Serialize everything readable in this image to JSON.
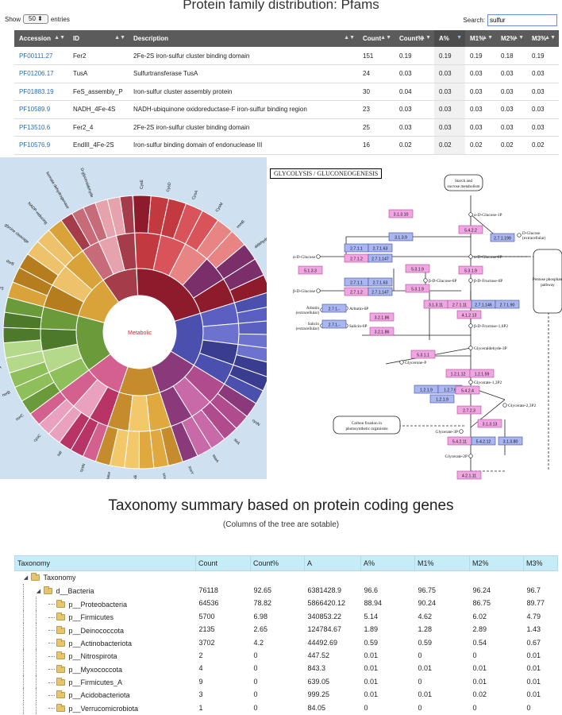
{
  "pfam": {
    "title": "Protein family distribution: Pfams",
    "show_label": "Show",
    "show_value": "50",
    "entries_label": "entries",
    "search_label": "Search:",
    "search_value": "sulfur",
    "headers": [
      "Accession",
      "ID",
      "Description",
      "Count",
      "Count%",
      "A%",
      "M1%",
      "M2%",
      "M3%"
    ],
    "rows": [
      [
        "PF00111.27",
        "Fer2",
        "2Fe-2S iron-sulfur cluster binding domain",
        "151",
        "0.19",
        "0.19",
        "0.19",
        "0.18",
        "0.19"
      ],
      [
        "PF01206.17",
        "TusA",
        "Sulfurtransferase TusA",
        "24",
        "0.03",
        "0.03",
        "0.03",
        "0.03",
        "0.03"
      ],
      [
        "PF01883.19",
        "FeS_assembly_P",
        "Iron-sulfur cluster assembly protein",
        "30",
        "0.04",
        "0.03",
        "0.03",
        "0.03",
        "0.03"
      ],
      [
        "PF10589.9",
        "NADH_4Fe-4S",
        "NADH-ubiquinone oxidoreductase-F iron-sulfur binding region",
        "23",
        "0.03",
        "0.03",
        "0.03",
        "0.03",
        "0.03"
      ],
      [
        "PF13510.6",
        "Fer2_4",
        "2Fe-2S iron-sulfur cluster binding domain",
        "25",
        "0.03",
        "0.03",
        "0.03",
        "0.03",
        "0.03"
      ],
      [
        "PF10576.9",
        "EndIII_4Fe-2S",
        "Iron-sulfur binding domain of endonuclease III",
        "16",
        "0.02",
        "0.02",
        "0.02",
        "0.02",
        "0.02"
      ]
    ]
  },
  "sunburst": {
    "center_label": "Metabolic",
    "labels": [
      "CysE",
      "CysD",
      "CysA",
      "CysM",
      "rnmB",
      "aldehyde dehydrogenase",
      "cysT",
      "Group II",
      "cysS",
      "cysB",
      "cysJ",
      "cysP",
      "cysN",
      "sirA",
      "sseA",
      "soxY",
      "soxC",
      "soxB",
      "dioxygenase",
      "cysN",
      "sat",
      "cysC",
      "norC",
      "norB",
      "napA",
      "nirD",
      "NiFe hydrogenase",
      "nirS",
      "dsrB",
      "glycine cleavage",
      "NADP-reducing",
      "formate dehydrogenase",
      "D-glyceraldehyde"
    ],
    "colors": [
      "#b2182b",
      "#d6604d",
      "#f4a582",
      "#4393c3",
      "#2166ac",
      "#5e3c99",
      "#7fbc41",
      "#e08214",
      "#fdb863",
      "#b35806",
      "#8c510a",
      "#b8e186",
      "#4d9221",
      "#e0f3f8"
    ]
  },
  "kegg": {
    "title": "GLYCOLYSIS / GLUCONEOGENESIS",
    "compounds": [
      "Starch and sucrose metabolism",
      "α-D-Glucose-1P",
      "D-Glucose (extracellular)",
      "α-D-Glucose",
      "α-D-Glucose-6P",
      "β-D-Glucose",
      "β-D-Glucose-6P",
      "β-D-Fructose-6P",
      "Pentose phosphate pathway",
      "Arbutin (extracellular)",
      "Arbutin-6P",
      "Salicin (extracellular)",
      "Salicin-6P",
      "β-D-Fructose-1,6P2",
      "Glyceraldehyde-3P",
      "Glycerone-P",
      "Glycerate-1,3P2",
      "Glycerate-2,3P2",
      "Carbon fixation in photosynthetic organisms",
      "Glycerate-3P",
      "Glycerate-2P"
    ],
    "enzymes": [
      "3.1.3.10",
      "5.4.2.2",
      "2.7.1.199",
      "3.1.3.9",
      "2.7.1.1",
      "2.7.1.63",
      "2.7.1.2",
      "2.7.1.147",
      "5.1.3.3",
      "5.3.1.9",
      "2.7.1.-",
      "3.2.1.86",
      "3.1.3.11",
      "2.7.1.11",
      "2.7.1.146",
      "2.7.1.90",
      "4.1.2.13",
      "5.3.1.1",
      "1.2.1.12",
      "1.2.1.59",
      "1.2.1.9",
      "1.2.7.6",
      "2.7.2.3",
      "5.4.2.4",
      "3.1.3.13",
      "5.4.2.11",
      "5.4.2.12",
      "3.1.3.80",
      "4.2.1.11"
    ]
  },
  "taxonomy": {
    "title": "Taxonomy summary based on protein coding genes",
    "subtitle": "(Columns of the tree are sotable)",
    "headers": [
      "Taxonomy",
      "Count",
      "Count%",
      "A",
      "A%",
      "M1%",
      "M2%",
      "M3%"
    ],
    "rows": [
      {
        "name": "Taxonomy",
        "level": 0,
        "values": [
          "",
          "",
          "",
          "",
          "",
          "",
          ""
        ]
      },
      {
        "name": "d__Bacteria",
        "level": 1,
        "values": [
          "76118",
          "92.65",
          "6381428.9",
          "96.6",
          "96.75",
          "96.24",
          "96.7"
        ]
      },
      {
        "name": "p__Proteobacteria",
        "level": 2,
        "values": [
          "64536",
          "78.82",
          "5866420.12",
          "88.94",
          "90.24",
          "86.75",
          "89.77"
        ]
      },
      {
        "name": "p__Firmicutes",
        "level": 2,
        "values": [
          "5700",
          "6.98",
          "340853.22",
          "5.14",
          "4.62",
          "6.02",
          "4.79"
        ]
      },
      {
        "name": "p__Deinococcota",
        "level": 2,
        "values": [
          "2135",
          "2.65",
          "124784.67",
          "1.89",
          "1.28",
          "2.89",
          "1.43"
        ]
      },
      {
        "name": "p__Actinobacteriota",
        "level": 2,
        "values": [
          "3702",
          "4.2",
          "44492.69",
          "0.59",
          "0.59",
          "0.54",
          "0.67"
        ]
      },
      {
        "name": "p__Nitrospirota",
        "level": 2,
        "values": [
          "2",
          "0",
          "447.52",
          "0.01",
          "0",
          "0",
          "0.01"
        ]
      },
      {
        "name": "p__Myxococcota",
        "level": 2,
        "values": [
          "4",
          "0",
          "843.3",
          "0.01",
          "0.01",
          "0.01",
          "0.01"
        ]
      },
      {
        "name": "p__Firmicutes_A",
        "level": 2,
        "values": [
          "9",
          "0",
          "639.05",
          "0.01",
          "0",
          "0.01",
          "0.01"
        ]
      },
      {
        "name": "p__Acidobacteriota",
        "level": 2,
        "values": [
          "3",
          "0",
          "999.25",
          "0.01",
          "0.01",
          "0.02",
          "0.01"
        ]
      },
      {
        "name": "p__Verrucomicrobiota",
        "level": 2,
        "values": [
          "1",
          "0",
          "84.05",
          "0",
          "0",
          "0",
          "0"
        ]
      }
    ]
  }
}
